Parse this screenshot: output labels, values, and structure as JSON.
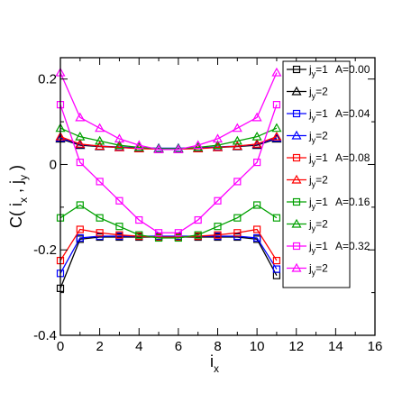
{
  "chart_data": {
    "type": "line",
    "xlabel": "i",
    "xlabel_sub": "x",
    "ylabel": "C( i",
    "ylabel_parts": [
      "C( i",
      "x",
      " , j",
      "y",
      " )"
    ],
    "xlim": [
      0,
      16
    ],
    "ylim": [
      -0.4,
      0.25
    ],
    "x_ticks": [
      0,
      2,
      4,
      6,
      8,
      10,
      12,
      14,
      16
    ],
    "x_tick_labels": [
      "0",
      "2",
      "4",
      "6",
      "8",
      "10",
      "12",
      "14",
      "16"
    ],
    "y_ticks": [
      -0.4,
      -0.2,
      0,
      0.2
    ],
    "y_tick_labels": [
      "-0.4",
      "-0.2",
      "0",
      "0.2"
    ],
    "grid": false,
    "legend_position": "top-right",
    "x": [
      0,
      1,
      2,
      3,
      4,
      5,
      6,
      7,
      8,
      9,
      10,
      11
    ],
    "series": [
      {
        "label_main": "j",
        "label_sub": "y",
        "label_eq": "=1",
        "label_param": "A=0.00",
        "color": "#000000",
        "marker": "square",
        "values": [
          -0.29,
          -0.175,
          -0.17,
          -0.17,
          -0.17,
          -0.17,
          -0.17,
          -0.17,
          -0.17,
          -0.17,
          -0.175,
          -0.26
        ]
      },
      {
        "label_main": "j",
        "label_sub": "y",
        "label_eq": "=2",
        "label_param": "",
        "color": "#000000",
        "marker": "triangle",
        "values": [
          0.06,
          0.045,
          0.042,
          0.04,
          0.038,
          0.037,
          0.037,
          0.038,
          0.04,
          0.042,
          0.045,
          0.06
        ]
      },
      {
        "label_main": "j",
        "label_sub": "y",
        "label_eq": "=1",
        "label_param": "A=0.04",
        "color": "#0000ff",
        "marker": "square",
        "values": [
          -0.255,
          -0.172,
          -0.168,
          -0.168,
          -0.168,
          -0.168,
          -0.168,
          -0.168,
          -0.168,
          -0.168,
          -0.172,
          -0.245
        ]
      },
      {
        "label_main": "j",
        "label_sub": "y",
        "label_eq": "=2",
        "label_param": "",
        "color": "#0000ff",
        "marker": "triangle",
        "values": [
          0.062,
          0.047,
          0.043,
          0.041,
          0.039,
          0.038,
          0.038,
          0.039,
          0.041,
          0.043,
          0.047,
          0.062
        ]
      },
      {
        "label_main": "j",
        "label_sub": "y",
        "label_eq": "=1",
        "label_param": "A=0.08",
        "color": "#ff0000",
        "marker": "square",
        "values": [
          -0.225,
          -0.152,
          -0.16,
          -0.165,
          -0.168,
          -0.17,
          -0.17,
          -0.168,
          -0.165,
          -0.16,
          -0.152,
          -0.225
        ]
      },
      {
        "label_main": "j",
        "label_sub": "y",
        "label_eq": "=2",
        "label_param": "",
        "color": "#ff0000",
        "marker": "triangle",
        "values": [
          0.065,
          0.048,
          0.043,
          0.04,
          0.037,
          0.036,
          0.036,
          0.037,
          0.04,
          0.043,
          0.048,
          0.065
        ]
      },
      {
        "label_main": "j",
        "label_sub": "y",
        "label_eq": "=1",
        "label_param": "A=0.16",
        "color": "#00a000",
        "marker": "square",
        "values": [
          -0.125,
          -0.095,
          -0.125,
          -0.145,
          -0.165,
          -0.172,
          -0.172,
          -0.165,
          -0.145,
          -0.125,
          -0.095,
          -0.125
        ]
      },
      {
        "label_main": "j",
        "label_sub": "y",
        "label_eq": "=2",
        "label_param": "",
        "color": "#00a000",
        "marker": "triangle",
        "values": [
          0.085,
          0.065,
          0.055,
          0.045,
          0.04,
          0.037,
          0.037,
          0.04,
          0.045,
          0.055,
          0.065,
          0.085
        ]
      },
      {
        "label_main": "j",
        "label_sub": "y",
        "label_eq": "=1",
        "label_param": "A=0.32",
        "color": "#ff00ff",
        "marker": "square",
        "values": [
          0.14,
          0.005,
          -0.04,
          -0.085,
          -0.13,
          -0.16,
          -0.16,
          -0.13,
          -0.085,
          -0.04,
          0.005,
          0.14
        ]
      },
      {
        "label_main": "j",
        "label_sub": "y",
        "label_eq": "=2",
        "label_param": "",
        "color": "#ff00ff",
        "marker": "triangle",
        "values": [
          0.215,
          0.11,
          0.085,
          0.06,
          0.045,
          0.035,
          0.035,
          0.045,
          0.06,
          0.085,
          0.11,
          0.215
        ]
      }
    ]
  }
}
